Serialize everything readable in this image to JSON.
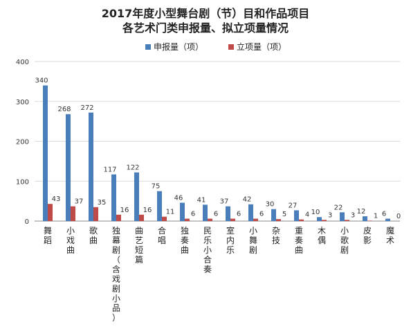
{
  "chart_data": {
    "type": "bar",
    "title": "2017年度小型舞台剧（节）目和作品项目",
    "subtitle": "各艺术门类申报量、拟立项量情况",
    "categories": [
      "舞蹈",
      "小戏曲",
      "歌曲",
      "独幕剧（含戏剧小品）",
      "曲艺短篇",
      "合唱",
      "独奏曲",
      "民乐小合奏",
      "室内乐",
      "小舞剧",
      "杂技",
      "重奏曲",
      "木偶",
      "小歌剧",
      "皮影",
      "魔术"
    ],
    "series": [
      {
        "name": "申报量（项）",
        "color": "#4A7EBB",
        "values": [
          340,
          268,
          272,
          117,
          122,
          75,
          46,
          41,
          37,
          42,
          30,
          27,
          10,
          22,
          12,
          6
        ]
      },
      {
        "name": "立项量（项）",
        "color": "#BE4B48",
        "values": [
          43,
          37,
          35,
          16,
          16,
          11,
          6,
          6,
          6,
          6,
          5,
          4,
          3,
          3,
          1,
          0
        ]
      }
    ],
    "ylim": [
      0,
      400
    ],
    "yticks": [
      0,
      100,
      200,
      300,
      400
    ],
    "grid": true,
    "legend": "top-center"
  }
}
